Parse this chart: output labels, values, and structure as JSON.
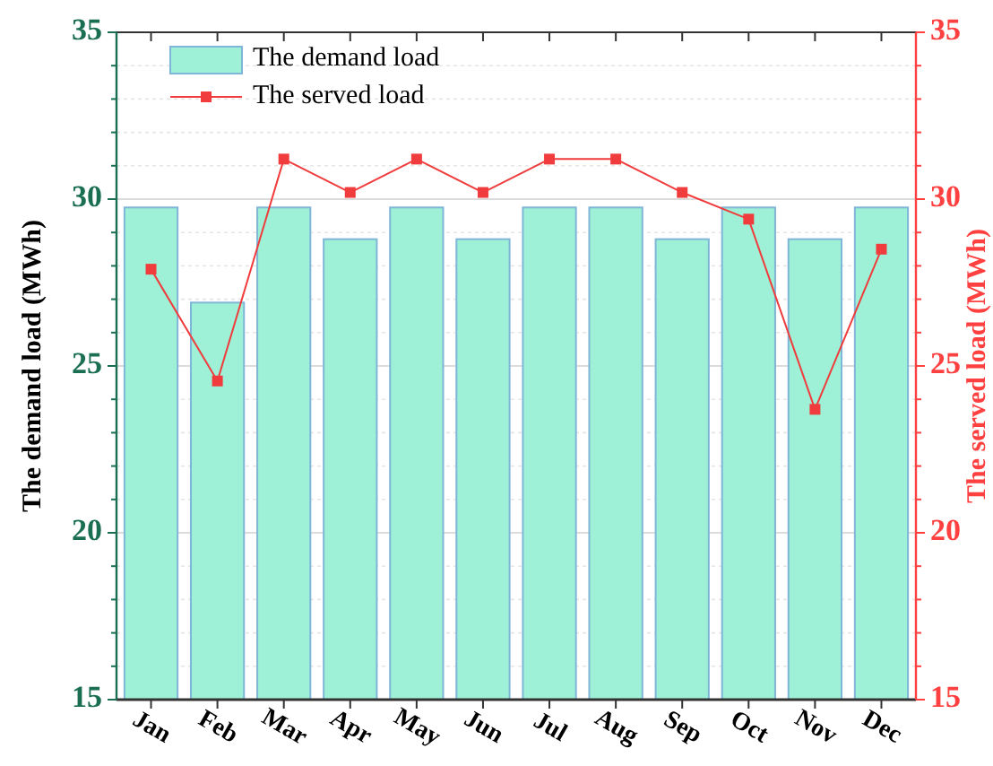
{
  "chart_data": {
    "type": "bar",
    "categories": [
      "Jan",
      "Feb",
      "Mar",
      "Apr",
      "May",
      "Jun",
      "Jul",
      "Aug",
      "Sep",
      "Oct",
      "Nov",
      "Dec"
    ],
    "ylabel": "The demand load (MWh)",
    "y2label": "The served load (MWh)",
    "series": [
      {
        "name": "The demand load",
        "color": "#9ef0d6",
        "values": [
          29.75,
          26.9,
          29.75,
          28.8,
          29.75,
          28.8,
          29.75,
          29.75,
          28.8,
          29.75,
          28.8,
          29.75
        ]
      },
      {
        "name": "The served load",
        "type": "line",
        "axis": "y2",
        "color": "#f03c3c",
        "marker": "square",
        "values": [
          27.9,
          24.55,
          31.2,
          30.2,
          31.2,
          30.2,
          31.2,
          31.2,
          30.2,
          29.4,
          23.7,
          28.5
        ]
      }
    ],
    "ylim": [
      15,
      35
    ],
    "yticks": [
      15,
      {
        "value": 16,
        "label": null
      },
      {
        "value": 17,
        "label": null
      },
      {
        "value": 18,
        "label": null
      },
      {
        "value": 19,
        "label": null
      },
      20,
      {
        "value": 21,
        "label": null
      },
      {
        "value": 22,
        "label": null
      },
      {
        "value": 23,
        "label": null
      },
      {
        "value": 24,
        "label": null
      },
      25,
      {
        "value": 26,
        "label": null
      },
      {
        "value": 27,
        "label": null
      },
      {
        "value": 28,
        "label": null
      },
      {
        "value": 29,
        "label": null
      },
      30,
      {
        "value": 31,
        "label": null
      },
      {
        "value": 32,
        "label": null
      },
      {
        "value": 33,
        "label": null
      },
      {
        "value": 34,
        "label": null
      },
      35
    ],
    "y2lim": [
      15,
      35
    ],
    "y2ticks": [
      15,
      {
        "value": 16,
        "label": null
      },
      {
        "value": 17,
        "label": null
      },
      {
        "value": 18,
        "label": null
      },
      {
        "value": 19,
        "label": null
      },
      20,
      {
        "value": 21,
        "label": null
      },
      {
        "value": 22,
        "label": null
      },
      {
        "value": 23,
        "label": null
      },
      {
        "value": 24,
        "label": null
      },
      25,
      {
        "value": 26,
        "label": null
      },
      {
        "value": 27,
        "label": null
      },
      {
        "value": 28,
        "label": null
      },
      {
        "value": 29,
        "label": null
      },
      30,
      {
        "value": 31,
        "label": null
      },
      {
        "value": 32,
        "label": null
      },
      {
        "value": 33,
        "label": null
      },
      {
        "value": 34,
        "label": null
      },
      35
    ],
    "grid": "y",
    "legend": "top left"
  }
}
